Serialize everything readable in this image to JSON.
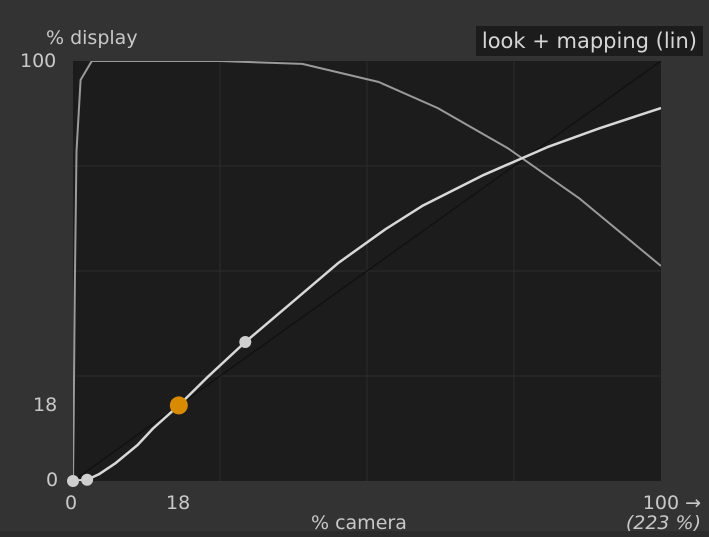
{
  "panel": {
    "title": "look + mapping (lin)",
    "y_axis_label": "% display",
    "x_axis_label": "% camera",
    "x_axis_max_label": "100 →",
    "x_axis_range_note": "(223 %)",
    "y_tick_labels": [
      "100",
      "18",
      "0"
    ],
    "x_tick_labels": [
      "0",
      "18"
    ]
  },
  "colors": {
    "panel_bg": "#333333",
    "plot_bg": "#1c1c1c",
    "curve": "#d8d8d8",
    "grid": "#2a2a2a",
    "active_node": "#d88a00",
    "node": "#cfcfcf"
  },
  "chart_data": {
    "type": "line",
    "title": "look + mapping (lin)",
    "xlabel": "% camera",
    "ylabel": "% display",
    "xlim": [
      0,
      100
    ],
    "ylim": [
      0,
      100
    ],
    "grid": true,
    "series": [
      {
        "x": [
          0,
          0.8,
          2.4,
          4.4,
          7.3,
          11.0,
          13.6,
          18.0,
          22.7,
          29.3,
          37.9,
          45.2,
          53.2,
          59.4,
          69.9,
          80.7,
          89.6,
          100
        ],
        "y": [
          0,
          0.1,
          0.3,
          1.6,
          4.3,
          8.6,
          12.5,
          18.0,
          24.5,
          33.1,
          43.3,
          52.0,
          60.0,
          65.5,
          72.9,
          79.5,
          84.0,
          88.8
        ]
      },
      {
        "x": [
          0,
          0.1,
          0.3,
          0.6,
          1.3,
          3.2,
          7.8,
          15.0,
          25.0,
          39.0,
          52.0,
          62.0,
          74.0,
          86.0,
          100
        ],
        "y": [
          0,
          12.9,
          45.7,
          78.5,
          95.5,
          100,
          100,
          100,
          100,
          99.3,
          95.0,
          88.8,
          79.2,
          67.4,
          51.2
        ]
      },
      {
        "x": [
          0,
          100
        ],
        "y": [
          0,
          100
        ]
      }
    ],
    "nodes": [
      {
        "x": 0,
        "y": 0,
        "role": "node"
      },
      {
        "x": 2.4,
        "y": 0.3,
        "role": "node"
      },
      {
        "x": 18.0,
        "y": 18.0,
        "role": "active"
      },
      {
        "x": 29.3,
        "y": 33.1,
        "role": "node"
      }
    ]
  }
}
